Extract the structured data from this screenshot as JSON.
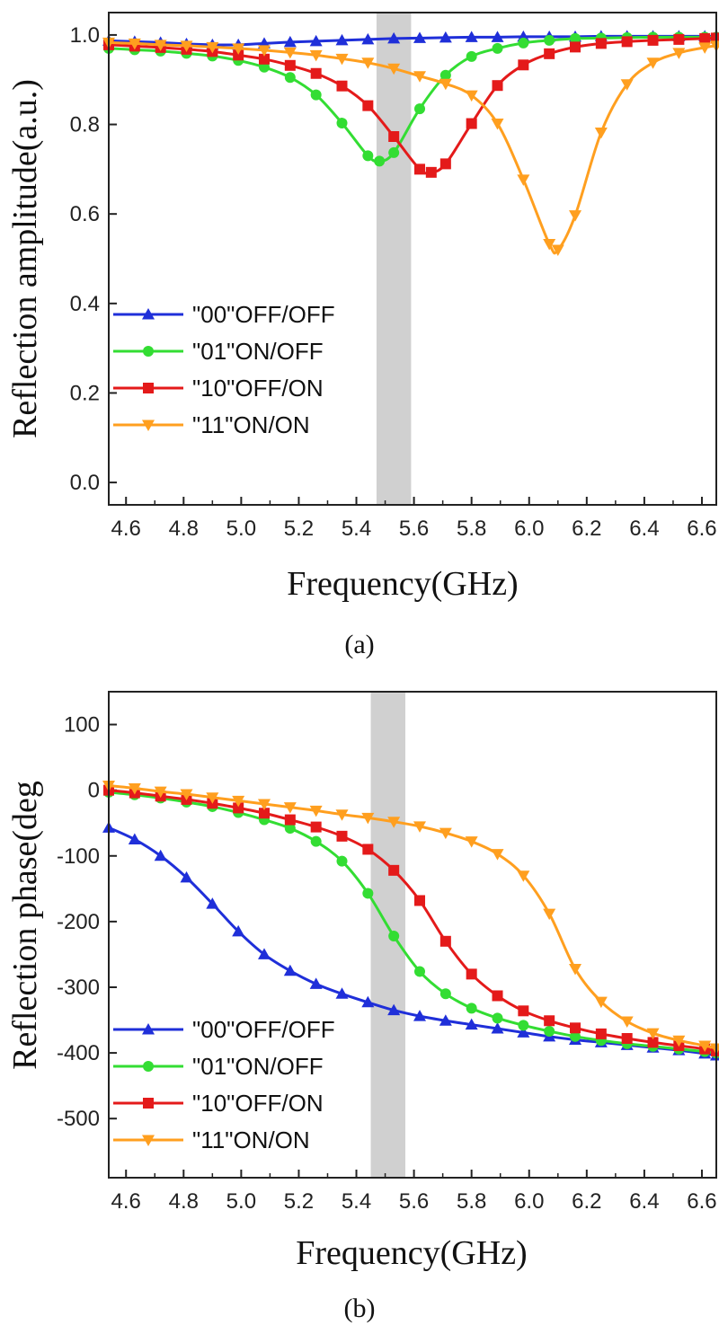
{
  "chart_data": [
    {
      "type": "line",
      "caption": "(a)",
      "xlabel": "Frequency(GHz)",
      "ylabel": "Reflection amplitude(a.u.)",
      "xlim": [
        4.54,
        6.65
      ],
      "ylim": [
        -0.05,
        1.05
      ],
      "xticks": [
        4.6,
        4.8,
        5.0,
        5.2,
        5.4,
        5.6,
        5.8,
        6.0,
        6.2,
        6.4,
        6.6
      ],
      "xtick_labels": [
        "4.6",
        "4.8",
        "5.0",
        "5.2",
        "5.4",
        "5.6",
        "5.8",
        "6.0",
        "6.2",
        "6.4",
        "6.6"
      ],
      "yticks": [
        0.0,
        0.2,
        0.4,
        0.6,
        0.8,
        1.0
      ],
      "ytick_labels": [
        "0.0",
        "0.2",
        "0.4",
        "0.6",
        "0.8",
        "1.0"
      ],
      "highlight_band": [
        5.47,
        5.59
      ],
      "legend_position": "lower-left",
      "series": [
        {
          "name": "\"00\"OFF/OFF",
          "color": "#1f2fd9",
          "marker": "triangle-up",
          "x": [
            4.54,
            4.63,
            4.72,
            4.81,
            4.9,
            4.99,
            5.08,
            5.17,
            5.26,
            5.35,
            5.44,
            5.53,
            5.62,
            5.71,
            5.8,
            5.89,
            5.98,
            6.07,
            6.16,
            6.25,
            6.34,
            6.43,
            6.52,
            6.61,
            6.65
          ],
          "y": [
            0.987,
            0.985,
            0.983,
            0.98,
            0.978,
            0.978,
            0.981,
            0.984,
            0.986,
            0.988,
            0.99,
            0.992,
            0.993,
            0.994,
            0.995,
            0.995,
            0.996,
            0.996,
            0.996,
            0.997,
            0.997,
            0.997,
            0.997,
            0.997,
            0.997
          ]
        },
        {
          "name": "\"01\"ON/OFF",
          "color": "#33dd33",
          "marker": "circle",
          "x": [
            4.54,
            4.63,
            4.72,
            4.81,
            4.9,
            4.99,
            5.08,
            5.17,
            5.26,
            5.35,
            5.44,
            5.48,
            5.53,
            5.62,
            5.71,
            5.8,
            5.89,
            5.98,
            6.07,
            6.16,
            6.25,
            6.34,
            6.43,
            6.52,
            6.61,
            6.65
          ],
          "y": [
            0.97,
            0.967,
            0.964,
            0.959,
            0.953,
            0.943,
            0.928,
            0.905,
            0.866,
            0.803,
            0.73,
            0.718,
            0.737,
            0.835,
            0.91,
            0.952,
            0.97,
            0.982,
            0.988,
            0.992,
            0.993,
            0.994,
            0.995,
            0.995,
            0.995,
            0.995
          ]
        },
        {
          "name": "\"10\"OFF/ON",
          "color": "#e41a1a",
          "marker": "square",
          "x": [
            4.54,
            4.63,
            4.72,
            4.81,
            4.9,
            4.99,
            5.08,
            5.17,
            5.26,
            5.35,
            5.44,
            5.53,
            5.62,
            5.66,
            5.71,
            5.8,
            5.89,
            5.98,
            6.07,
            6.16,
            6.25,
            6.34,
            6.43,
            6.52,
            6.61,
            6.65
          ],
          "y": [
            0.978,
            0.975,
            0.972,
            0.968,
            0.963,
            0.955,
            0.946,
            0.932,
            0.914,
            0.886,
            0.842,
            0.773,
            0.7,
            0.693,
            0.712,
            0.802,
            0.887,
            0.933,
            0.958,
            0.973,
            0.981,
            0.985,
            0.988,
            0.99,
            0.992,
            0.993
          ]
        },
        {
          "name": "\"11\"ON/ON",
          "color": "#ff9f1f",
          "marker": "triangle-down",
          "x": [
            4.54,
            4.63,
            4.72,
            4.81,
            4.9,
            4.99,
            5.08,
            5.17,
            5.26,
            5.35,
            5.44,
            5.53,
            5.62,
            5.71,
            5.8,
            5.89,
            5.98,
            6.07,
            6.1,
            6.16,
            6.25,
            6.34,
            6.43,
            6.52,
            6.61,
            6.65
          ],
          "y": [
            0.983,
            0.981,
            0.978,
            0.976,
            0.973,
            0.97,
            0.966,
            0.961,
            0.955,
            0.947,
            0.938,
            0.925,
            0.908,
            0.891,
            0.865,
            0.802,
            0.677,
            0.533,
            0.52,
            0.597,
            0.782,
            0.89,
            0.938,
            0.96,
            0.972,
            0.976
          ]
        }
      ]
    },
    {
      "type": "line",
      "caption": "(b)",
      "xlabel": "Frequency(GHz)",
      "ylabel": "Reflection phase(deg",
      "xlim": [
        4.54,
        6.65
      ],
      "ylim": [
        -590,
        150
      ],
      "xticks": [
        4.6,
        4.8,
        5.0,
        5.2,
        5.4,
        5.6,
        5.8,
        6.0,
        6.2,
        6.4,
        6.6
      ],
      "xtick_labels": [
        "4.6",
        "4.8",
        "5.0",
        "5.2",
        "5.4",
        "5.6",
        "5.8",
        "6.0",
        "6.2",
        "6.4",
        "6.6"
      ],
      "yticks": [
        100,
        0,
        -100,
        -200,
        -300,
        -400,
        -500
      ],
      "ytick_labels": [
        "100",
        "0",
        "-100",
        "-200",
        "-300",
        "-400",
        "-500"
      ],
      "highlight_band": [
        5.45,
        5.57
      ],
      "legend_position": "lower-left",
      "series": [
        {
          "name": "\"00\"OFF/OFF",
          "color": "#1f2fd9",
          "marker": "triangle-up",
          "x": [
            4.54,
            4.63,
            4.72,
            4.81,
            4.9,
            4.99,
            5.08,
            5.17,
            5.26,
            5.35,
            5.44,
            5.53,
            5.62,
            5.71,
            5.8,
            5.89,
            5.98,
            6.07,
            6.16,
            6.25,
            6.34,
            6.43,
            6.52,
            6.61,
            6.65
          ],
          "y": [
            -57,
            -75,
            -100,
            -133,
            -173,
            -215,
            -250,
            -275,
            -295,
            -310,
            -323,
            -335,
            -344,
            -351,
            -357,
            -363,
            -369,
            -375,
            -380,
            -384,
            -388,
            -392,
            -396,
            -401,
            -404
          ]
        },
        {
          "name": "\"01\"ON/OFF",
          "color": "#33dd33",
          "marker": "circle",
          "x": [
            4.54,
            4.63,
            4.72,
            4.81,
            4.9,
            4.99,
            5.08,
            5.17,
            5.26,
            5.35,
            5.44,
            5.53,
            5.62,
            5.71,
            5.8,
            5.89,
            5.98,
            6.07,
            6.16,
            6.25,
            6.34,
            6.43,
            6.52,
            6.61,
            6.65
          ],
          "y": [
            -3,
            -7,
            -12,
            -18,
            -25,
            -34,
            -45,
            -58,
            -78,
            -108,
            -157,
            -222,
            -276,
            -310,
            -332,
            -347,
            -358,
            -367,
            -375,
            -381,
            -386,
            -390,
            -394,
            -398,
            -400
          ]
        },
        {
          "name": "\"10\"OFF/ON",
          "color": "#e41a1a",
          "marker": "square",
          "x": [
            4.54,
            4.63,
            4.72,
            4.81,
            4.9,
            4.99,
            5.08,
            5.17,
            5.26,
            5.35,
            5.44,
            5.53,
            5.62,
            5.71,
            5.8,
            5.89,
            5.98,
            6.07,
            6.16,
            6.25,
            6.34,
            6.43,
            6.52,
            6.61,
            6.65
          ],
          "y": [
            0,
            -4,
            -9,
            -14,
            -20,
            -27,
            -35,
            -45,
            -56,
            -70,
            -90,
            -122,
            -168,
            -230,
            -280,
            -313,
            -336,
            -351,
            -362,
            -371,
            -378,
            -384,
            -389,
            -394,
            -397
          ]
        },
        {
          "name": "\"11\"ON/ON",
          "color": "#ff9f1f",
          "marker": "triangle-down",
          "x": [
            4.54,
            4.63,
            4.72,
            4.81,
            4.9,
            4.99,
            5.08,
            5.17,
            5.26,
            5.35,
            5.44,
            5.53,
            5.62,
            5.71,
            5.8,
            5.89,
            5.98,
            6.07,
            6.16,
            6.25,
            6.34,
            6.43,
            6.52,
            6.61,
            6.65
          ],
          "y": [
            7,
            3,
            -2,
            -6,
            -11,
            -16,
            -21,
            -26,
            -31,
            -37,
            -42,
            -48,
            -55,
            -65,
            -78,
            -97,
            -130,
            -188,
            -272,
            -322,
            -352,
            -370,
            -381,
            -389,
            -393
          ]
        }
      ]
    }
  ]
}
